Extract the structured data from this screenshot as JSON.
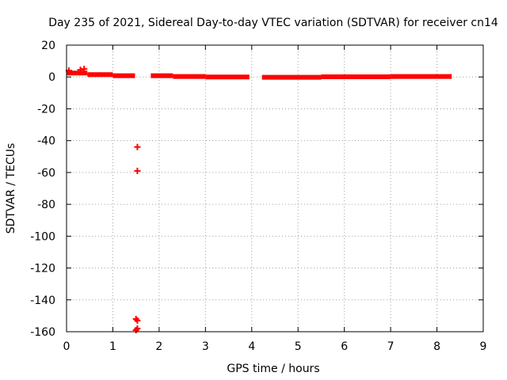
{
  "chart_data": {
    "type": "scatter",
    "title": "Day 235 of 2021, Sidereal Day-to-day VTEC variation (SDTVAR) for receiver cn14",
    "xlabel": "GPS time / hours",
    "ylabel": "SDTVAR / TECUs",
    "xlim": [
      0,
      9
    ],
    "ylim": [
      -160,
      20
    ],
    "x_ticks": [
      0,
      1,
      2,
      3,
      4,
      5,
      6,
      7,
      8,
      9
    ],
    "x_tick_labels": [
      "0",
      "1",
      "2",
      "3",
      "4",
      "5",
      "6",
      "7",
      "8",
      "9"
    ],
    "y_ticks": [
      20,
      0,
      -20,
      -40,
      -60,
      -80,
      -100,
      -120,
      -140,
      -160
    ],
    "y_tick_labels": [
      "20",
      "0",
      "-20",
      "-40",
      "-60",
      "-80",
      "-100",
      "-120",
      "-140",
      "-160"
    ],
    "grid": true,
    "marker_color": "#ff0000",
    "series": [
      {
        "name": "SDTVAR",
        "dense_segments": [
          {
            "x_start": 0.0,
            "x_end": 0.45,
            "y": 2.5
          },
          {
            "x_start": 0.45,
            "x_end": 1.0,
            "y": 1.5
          },
          {
            "x_start": 1.0,
            "x_end": 1.48,
            "y": 0.8
          },
          {
            "x_start": 1.82,
            "x_end": 2.3,
            "y": 0.8
          },
          {
            "x_start": 2.3,
            "x_end": 3.0,
            "y": 0.3
          },
          {
            "x_start": 3.0,
            "x_end": 3.95,
            "y": 0.0
          },
          {
            "x_start": 4.22,
            "x_end": 5.5,
            "y": -0.2
          },
          {
            "x_start": 5.5,
            "x_end": 7.0,
            "y": 0.1
          },
          {
            "x_start": 7.0,
            "x_end": 8.32,
            "y": 0.3
          }
        ],
        "points": [
          {
            "x": 0.05,
            "y": 4
          },
          {
            "x": 0.3,
            "y": 4.5
          },
          {
            "x": 0.38,
            "y": 5
          },
          {
            "x": 1.53,
            "y": -44
          },
          {
            "x": 1.53,
            "y": -59
          },
          {
            "x": 1.5,
            "y": -152
          },
          {
            "x": 1.53,
            "y": -153
          },
          {
            "x": 1.5,
            "y": -159
          },
          {
            "x": 1.53,
            "y": -158
          }
        ]
      }
    ]
  }
}
